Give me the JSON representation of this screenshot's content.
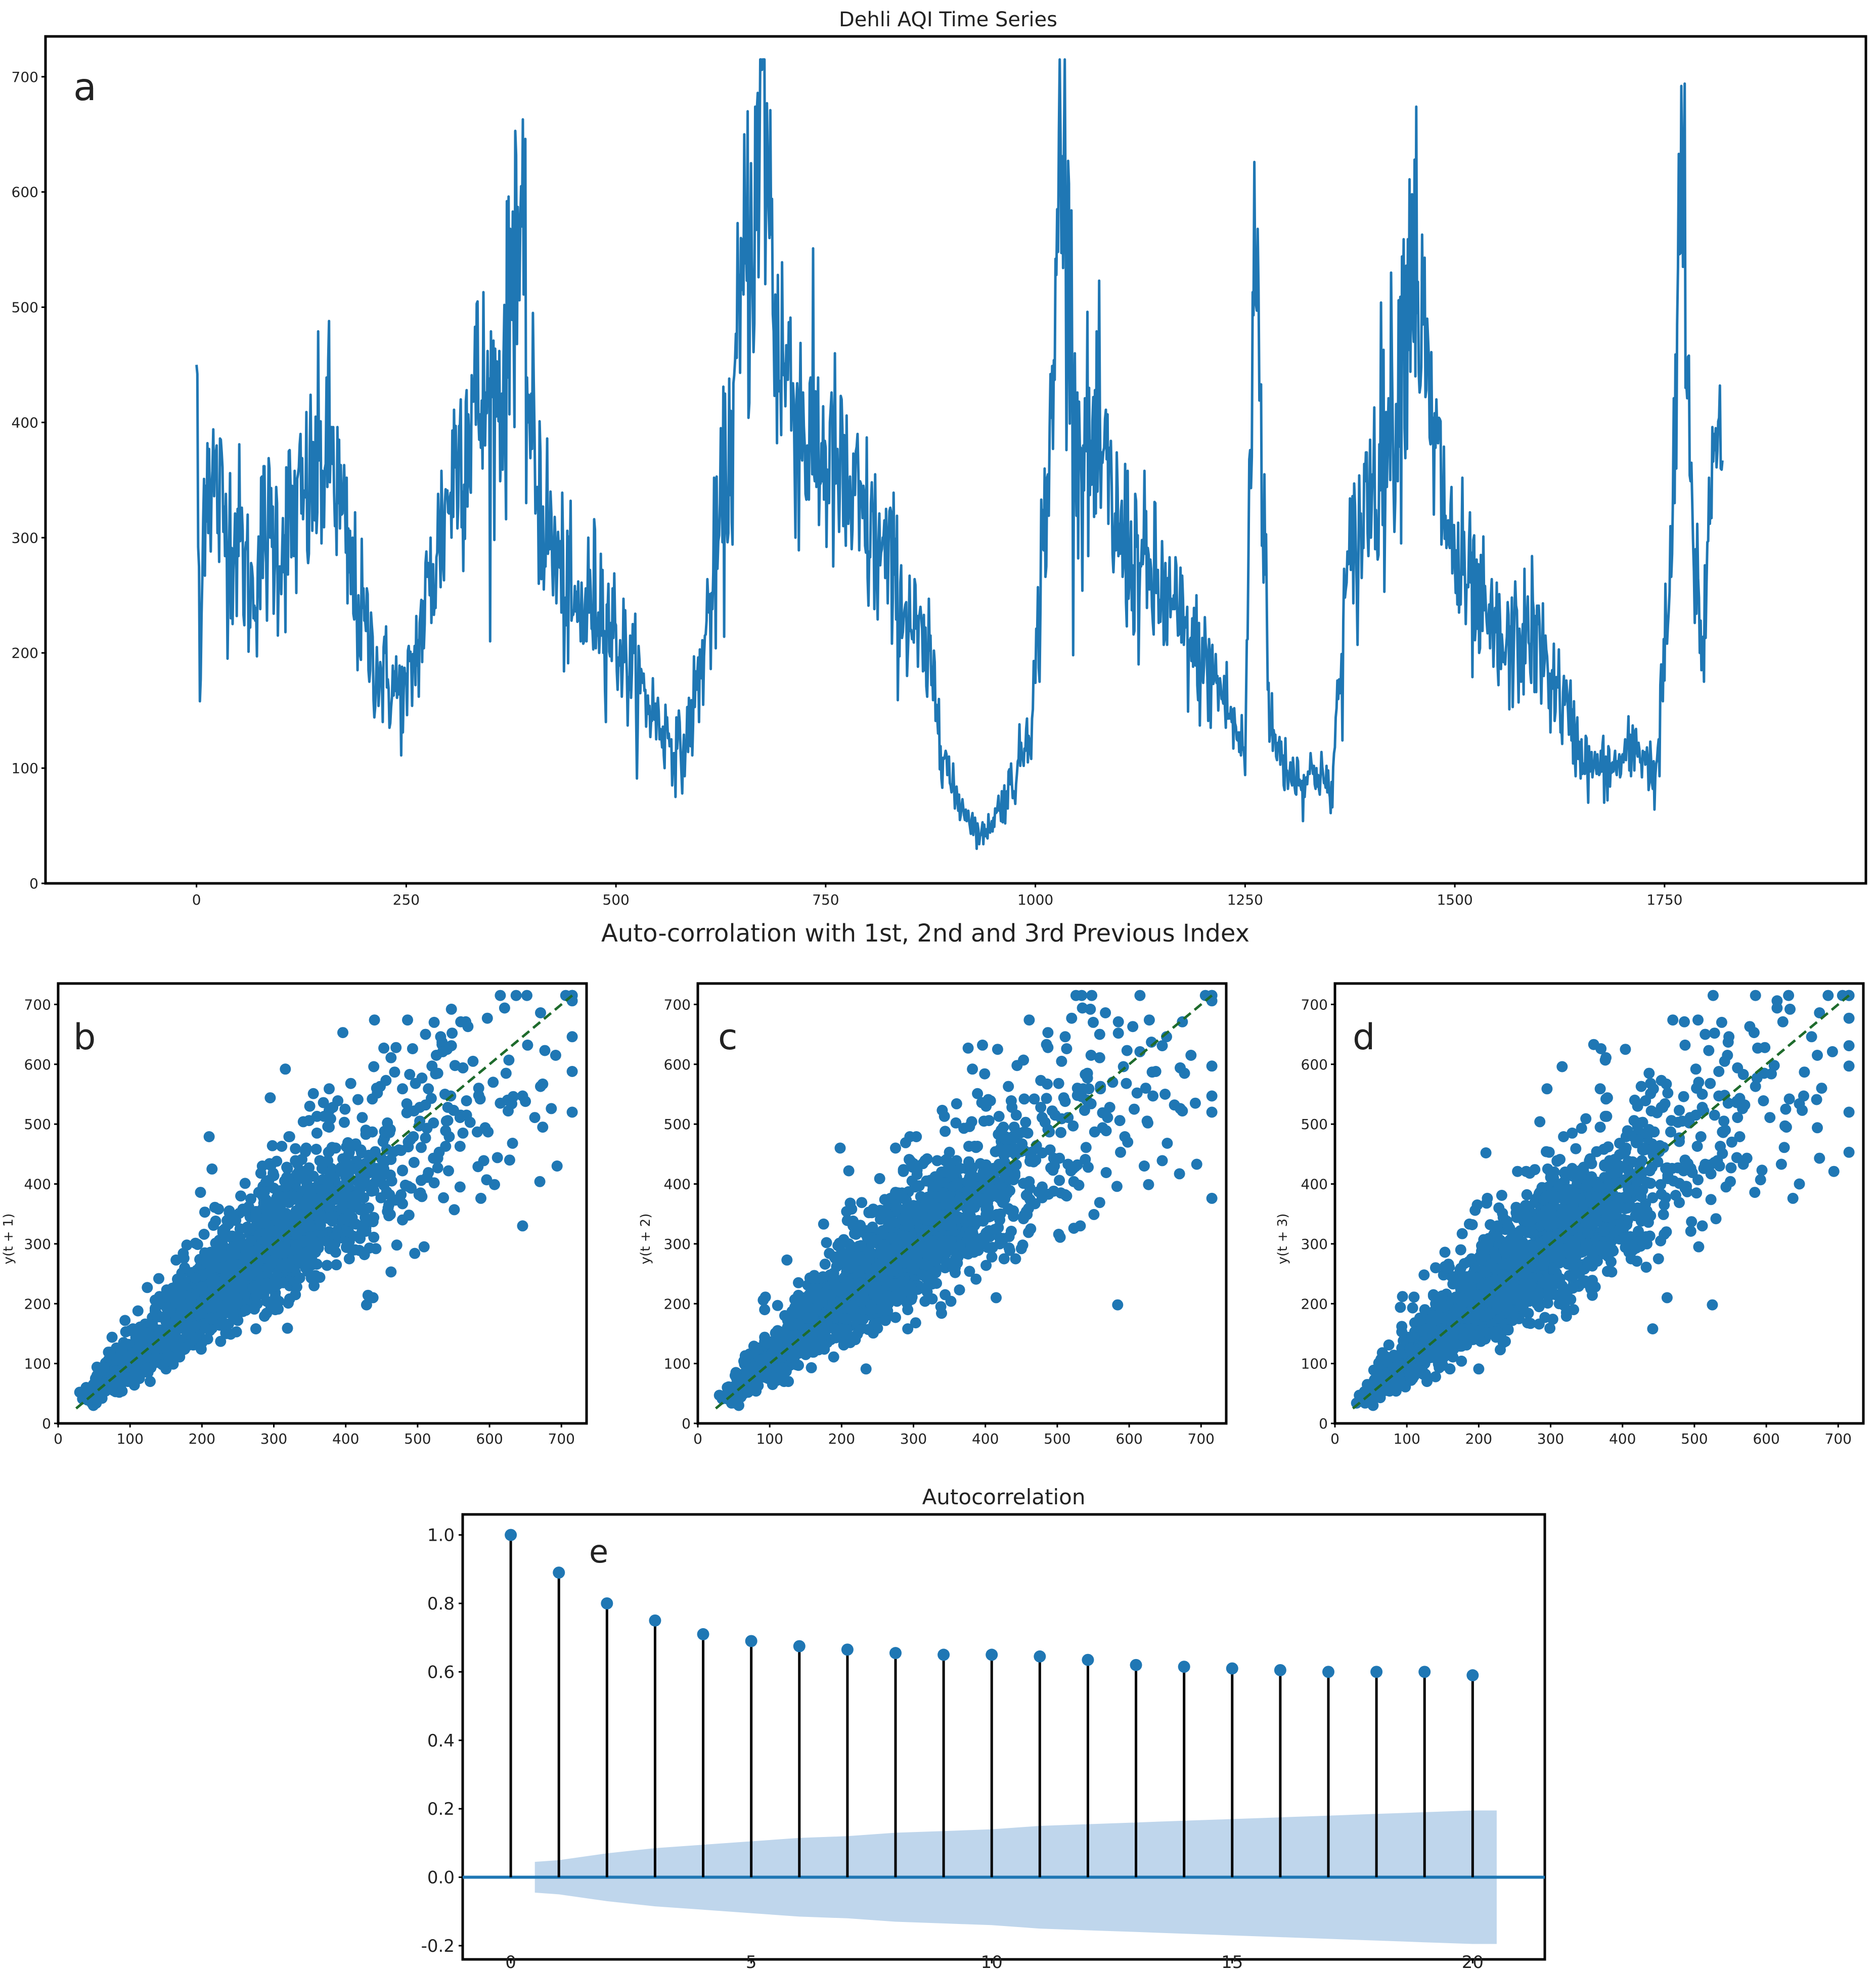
{
  "chart_data": [
    {
      "type": "line",
      "title": "Dehli AQI Time Series",
      "panel_label": "a",
      "xlabel": "",
      "ylabel": "",
      "xlim": [
        -180,
        1990
      ],
      "ylim": [
        0,
        735
      ],
      "xticks": [
        0,
        250,
        500,
        750,
        1000,
        1250,
        1500,
        1750
      ],
      "yticks": [
        0,
        100,
        200,
        300,
        400,
        500,
        600,
        700
      ],
      "color": "#1f77b4",
      "grid": false,
      "keypoints_x": [
        0,
        4,
        10,
        20,
        35,
        50,
        65,
        80,
        100,
        130,
        160,
        180,
        200,
        220,
        250,
        270,
        290,
        310,
        330,
        350,
        370,
        380,
        400,
        420,
        450,
        480,
        520,
        560,
        580,
        600,
        620,
        640,
        655,
        670,
        675,
        690,
        710,
        730,
        750,
        780,
        820,
        850,
        880,
        900,
        920,
        935,
        945,
        960,
        980,
        1000,
        1010,
        1020,
        1030,
        1050,
        1080,
        1100,
        1130,
        1160,
        1190,
        1220,
        1250,
        1262,
        1280,
        1300,
        1320,
        1340,
        1352,
        1370,
        1400,
        1430,
        1450,
        1470,
        1500,
        1530,
        1560,
        1590,
        1620,
        1660,
        1690,
        1720,
        1740,
        1760,
        1770,
        1780,
        1795,
        1810,
        1815
      ],
      "keypoints_y": [
        470,
        150,
        375,
        350,
        310,
        300,
        250,
        300,
        300,
        330,
        380,
        280,
        220,
        180,
        160,
        230,
        300,
        370,
        420,
        410,
        450,
        600,
        380,
        300,
        230,
        250,
        180,
        130,
        110,
        180,
        280,
        400,
        550,
        600,
        715,
        480,
        430,
        380,
        370,
        330,
        280,
        230,
        170,
        80,
        60,
        40,
        50,
        70,
        100,
        170,
        320,
        380,
        670,
        380,
        360,
        300,
        270,
        240,
        200,
        170,
        110,
        590,
        130,
        100,
        90,
        100,
        70,
        250,
        350,
        420,
        570,
        400,
        280,
        230,
        200,
        220,
        170,
        100,
        100,
        120,
        90,
        300,
        650,
        340,
        200,
        400,
        420
      ],
      "series": [
        {
          "values": []
        }
      ]
    },
    {
      "type": "scatter",
      "title": "Auto-corrolation with 1st, 2nd and 3rd Previous Index",
      "panels": [
        {
          "panel_label": "b",
          "lag": 1,
          "xlabel": "",
          "ylabel": "y(t + 1)",
          "xlim": [
            0,
            735
          ],
          "ylim": [
            0,
            735
          ],
          "xticks": [
            0,
            100,
            200,
            300,
            400,
            500,
            600,
            700
          ],
          "yticks": [
            0,
            100,
            200,
            300,
            400,
            500,
            600,
            700
          ],
          "reference_line": {
            "from": [
              25,
              25
            ],
            "to": [
              715,
              715
            ],
            "color": "#1e6b2c",
            "style": "dashed"
          },
          "points": []
        },
        {
          "panel_label": "c",
          "lag": 2,
          "xlabel": "",
          "ylabel": "y(t + 2)",
          "xlim": [
            0,
            735
          ],
          "ylim": [
            0,
            735
          ],
          "xticks": [
            0,
            100,
            200,
            300,
            400,
            500,
            600,
            700
          ],
          "yticks": [
            0,
            100,
            200,
            300,
            400,
            500,
            600,
            700
          ],
          "reference_line": {
            "from": [
              25,
              25
            ],
            "to": [
              715,
              715
            ],
            "color": "#1e6b2c",
            "style": "dashed"
          },
          "points": []
        },
        {
          "panel_label": "d",
          "lag": 3,
          "xlabel": "",
          "ylabel": "y(t + 3)",
          "xlim": [
            0,
            735
          ],
          "ylim": [
            0,
            735
          ],
          "xticks": [
            0,
            100,
            200,
            300,
            400,
            500,
            600,
            700
          ],
          "yticks": [
            0,
            100,
            200,
            300,
            400,
            500,
            600,
            700
          ],
          "reference_line": {
            "from": [
              25,
              25
            ],
            "to": [
              715,
              715
            ],
            "color": "#1e6b2c",
            "style": "dashed"
          },
          "points": []
        }
      ],
      "color": "#1f77b4"
    },
    {
      "type": "bar",
      "subtype": "stem",
      "title": "Autocorrelation",
      "panel_label": "e",
      "xlabel": "",
      "ylabel": "",
      "xlim": [
        -1,
        21.5
      ],
      "ylim": [
        -0.24,
        1.06
      ],
      "xticks": [
        0,
        5,
        10,
        15,
        20
      ],
      "yticks": [
        "-0.2",
        "0.0",
        "0.2",
        "0.4",
        "0.6",
        "0.8",
        "1.0"
      ],
      "lags": [
        0,
        1,
        2,
        3,
        4,
        5,
        6,
        7,
        8,
        9,
        10,
        11,
        12,
        13,
        14,
        15,
        16,
        17,
        18,
        19,
        20
      ],
      "values": [
        1.0,
        0.89,
        0.8,
        0.75,
        0.71,
        0.69,
        0.675,
        0.665,
        0.655,
        0.65,
        0.65,
        0.645,
        0.635,
        0.62,
        0.615,
        0.61,
        0.605,
        0.6,
        0.6,
        0.6,
        0.59
      ],
      "confidence_band": {
        "lags": [
          0.5,
          1,
          2,
          3,
          4,
          5,
          6,
          7,
          8,
          9,
          10,
          11,
          12,
          13,
          14,
          15,
          16,
          17,
          18,
          19,
          20,
          20.5
        ],
        "upper": [
          0.045,
          0.05,
          0.07,
          0.085,
          0.095,
          0.105,
          0.115,
          0.12,
          0.13,
          0.135,
          0.14,
          0.15,
          0.155,
          0.16,
          0.165,
          0.17,
          0.175,
          0.18,
          0.185,
          0.19,
          0.195,
          0.195
        ]
      },
      "marker_color": "#1f77b4",
      "stem_color": "#000000",
      "band_color": "#a9c8e6",
      "baseline_color": "#1f77b4"
    }
  ]
}
